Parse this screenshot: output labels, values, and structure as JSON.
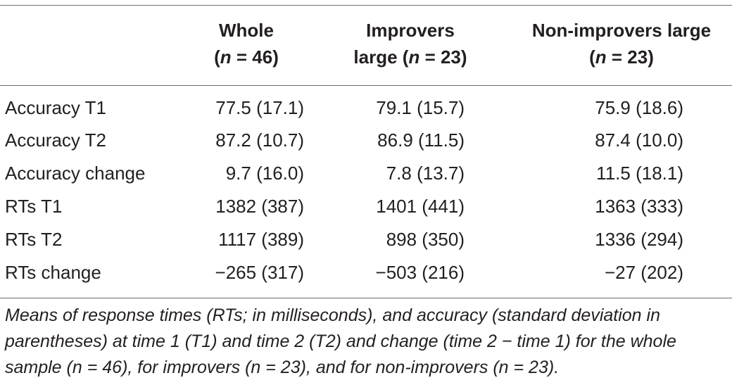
{
  "table": {
    "columns": [
      {
        "line1": "Whole",
        "line2_pre": "(",
        "line2_n": "n",
        "line2_post": " = 46)"
      },
      {
        "line1": "Improvers",
        "line2_pre": "large (",
        "line2_n": "n",
        "line2_post": " = 23)"
      },
      {
        "line1": "Non-improvers large",
        "line2_pre": "(",
        "line2_n": "n",
        "line2_post": " = 23)"
      }
    ],
    "rows": [
      {
        "label": "Accuracy T1",
        "values": [
          "77.5 (17.1)",
          "79.1 (15.7)",
          "75.9 (18.6)"
        ]
      },
      {
        "label": "Accuracy T2",
        "values": [
          "87.2 (10.7)",
          "86.9 (11.5)",
          "87.4 (10.0)"
        ]
      },
      {
        "label": "Accuracy change",
        "values": [
          "9.7 (16.0)",
          "7.8 (13.7)",
          "11.5 (18.1)"
        ]
      },
      {
        "label": "RTs T1",
        "values": [
          "1382 (387)",
          "1401 (441)",
          "1363 (333)"
        ]
      },
      {
        "label": "RTs T2",
        "values": [
          "1117 (389)",
          "898 (350)",
          "1336 (294)"
        ]
      },
      {
        "label": "RTs change",
        "values": [
          "−265 (317)",
          "−503 (216)",
          "−27 (202)"
        ]
      }
    ],
    "caption": "Means of response times (RTs; in milliseconds), and accuracy (standard deviation in parentheses) at time 1 (T1) and time 2 (T2) and change (time 2 − time 1) for the whole sample (n = 46), for improvers (n = 23), and for non-improvers (n = 23)."
  }
}
